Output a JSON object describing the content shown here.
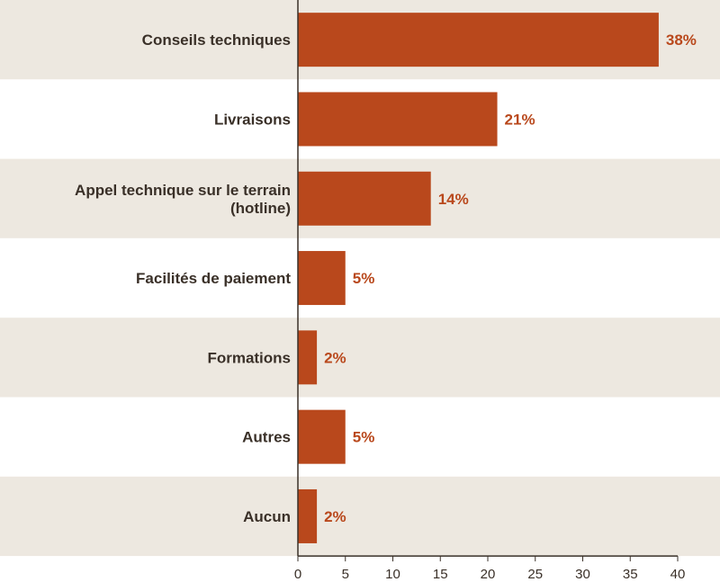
{
  "chart_data": {
    "type": "bar",
    "orientation": "horizontal",
    "title": "",
    "xlabel": "",
    "ylabel": "",
    "categories": [
      [
        "Conseils techniques"
      ],
      [
        "Livraisons"
      ],
      [
        "Appel technique sur le terrain",
        "(hotline)"
      ],
      [
        "Facilités de paiement"
      ],
      [
        "Formations"
      ],
      [
        "Autres"
      ],
      [
        "Aucun"
      ]
    ],
    "values": [
      38,
      21,
      14,
      5,
      2,
      5,
      2
    ],
    "value_labels": [
      "38%",
      "21%",
      "14%",
      "5%",
      "2%",
      "5%",
      "2%"
    ],
    "xlim": [
      0,
      40
    ],
    "xticks": [
      "0",
      "5",
      "10",
      "15",
      "20",
      "25",
      "30",
      "35",
      "40"
    ],
    "grid": false,
    "legend": "none",
    "colors": {
      "bar": "#b9481c",
      "band_alt": "#ede8e0",
      "band": "#ffffff",
      "axis": "#3a3028",
      "label_value": "#b9481c"
    }
  }
}
